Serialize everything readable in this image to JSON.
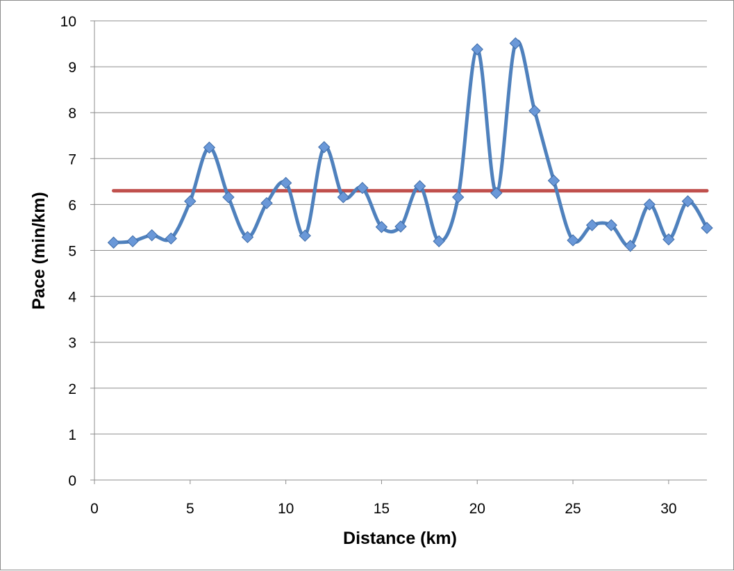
{
  "chart_data": {
    "type": "line",
    "title": "",
    "xlabel": "Distance (km)",
    "ylabel": "Pace (min/km)",
    "xlim": [
      0,
      32
    ],
    "ylim": [
      0,
      10
    ],
    "x_ticks": [
      0,
      5,
      10,
      15,
      20,
      25,
      30
    ],
    "y_ticks": [
      0,
      1,
      2,
      3,
      4,
      5,
      6,
      7,
      8,
      9,
      10
    ],
    "grid": "horizontal",
    "legend": "none",
    "smoothed": true,
    "series": [
      {
        "color": "#4f81bd",
        "marker": "diamond",
        "marker_color": "#6a98d8",
        "x": [
          1,
          2,
          3,
          4,
          5,
          6,
          7,
          8,
          9,
          10,
          11,
          12,
          13,
          14,
          15,
          16,
          17,
          18,
          19,
          20,
          21,
          22,
          23,
          24,
          25,
          26,
          27,
          28,
          29,
          30,
          31,
          32
        ],
        "values": [
          5.17,
          5.2,
          5.33,
          5.26,
          6.07,
          7.24,
          6.16,
          5.29,
          6.03,
          6.47,
          5.32,
          7.25,
          6.16,
          6.36,
          5.51,
          5.52,
          6.4,
          5.2,
          6.16,
          9.38,
          6.25,
          9.51,
          8.04,
          6.52,
          5.22,
          5.55,
          5.55,
          5.1,
          6.0,
          5.24,
          6.07,
          5.49
        ]
      },
      {
        "color": "#c0504d",
        "marker": "none",
        "x": [
          1,
          32
        ],
        "values": [
          6.3,
          6.3
        ]
      }
    ]
  }
}
